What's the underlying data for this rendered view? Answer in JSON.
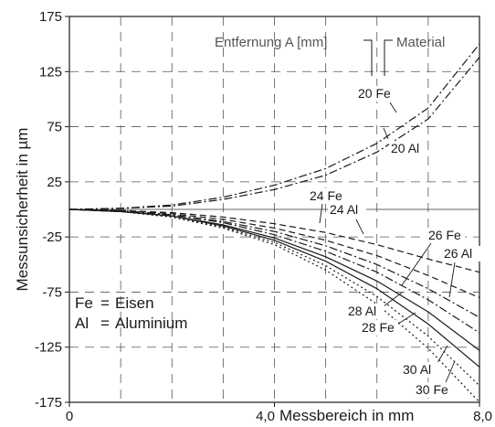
{
  "chart_data": {
    "type": "line",
    "xlabel": "Messbereich in mm",
    "ylabel": "Messunsicherheit in µm",
    "xlim": [
      0,
      8.0
    ],
    "ylim": [
      -175,
      175
    ],
    "x_ticks": [
      {
        "v": 0,
        "label": "0"
      },
      {
        "v": 4,
        "label": "4,0"
      },
      {
        "v": 8,
        "label": "8,0"
      }
    ],
    "y_ticks": [
      {
        "v": 175,
        "label": "175"
      },
      {
        "v": 125,
        "label": "125"
      },
      {
        "v": 75,
        "label": "75"
      },
      {
        "v": 25,
        "label": "25"
      },
      {
        "v": -25,
        "label": "-25"
      },
      {
        "v": -75,
        "label": "-75"
      },
      {
        "v": -125,
        "label": "-125"
      },
      {
        "v": -175,
        "label": "-175"
      }
    ],
    "grid": true,
    "header_labels": {
      "distance": "Entfernung A [mm]",
      "material": "Material"
    },
    "legend_lines": [
      {
        "abbr": "Fe",
        "name": "Eisen"
      },
      {
        "abbr": "Al",
        "name": "Aluminium"
      }
    ],
    "series": [
      {
        "name": "20 Fe",
        "style": "dashdot",
        "x": [
          0,
          1,
          2,
          3,
          4,
          5,
          6,
          7,
          8
        ],
        "values": [
          0,
          1,
          4,
          11,
          22,
          37,
          60,
          92,
          150
        ]
      },
      {
        "name": "20 Al",
        "style": "dashdot",
        "x": [
          0,
          1,
          2,
          3,
          4,
          5,
          6,
          7,
          8
        ],
        "values": [
          0,
          1,
          3,
          9,
          18,
          31,
          52,
          82,
          138
        ]
      },
      {
        "name": "24 Fe",
        "style": "dashed",
        "x": [
          0,
          1,
          2,
          3,
          4,
          5,
          6,
          7,
          8
        ],
        "values": [
          0,
          -1,
          -3,
          -7,
          -13,
          -21,
          -32,
          -45,
          -57
        ]
      },
      {
        "name": "24 Al",
        "style": "dashed",
        "x": [
          0,
          1,
          2,
          3,
          4,
          5,
          6,
          7,
          8
        ],
        "values": [
          0,
          -1,
          -4,
          -9,
          -17,
          -28,
          -42,
          -60,
          -80
        ]
      },
      {
        "name": "26 Fe",
        "style": "dashdot",
        "x": [
          0,
          1,
          2,
          3,
          4,
          5,
          6,
          7,
          8
        ],
        "values": [
          0,
          -1,
          -5,
          -11,
          -20,
          -33,
          -50,
          -72,
          -98
        ]
      },
      {
        "name": "26 Al",
        "style": "dashdot",
        "x": [
          0,
          1,
          2,
          3,
          4,
          5,
          6,
          7,
          8
        ],
        "values": [
          0,
          -1,
          -5,
          -12,
          -23,
          -38,
          -57,
          -82,
          -112
        ]
      },
      {
        "name": "28 Al",
        "style": "solid",
        "x": [
          0,
          1,
          2,
          3,
          4,
          5,
          6,
          7,
          8
        ],
        "values": [
          0,
          -2,
          -6,
          -14,
          -26,
          -43,
          -65,
          -93,
          -128
        ]
      },
      {
        "name": "28 Fe",
        "style": "solid",
        "x": [
          0,
          1,
          2,
          3,
          4,
          5,
          6,
          7,
          8
        ],
        "values": [
          0,
          -2,
          -6,
          -15,
          -28,
          -47,
          -72,
          -104,
          -143
        ]
      },
      {
        "name": "30 Al",
        "style": "dotted",
        "x": [
          0,
          1,
          2,
          3,
          4,
          5,
          6,
          7,
          8
        ],
        "values": [
          0,
          -2,
          -7,
          -16,
          -30,
          -51,
          -79,
          -115,
          -160
        ]
      },
      {
        "name": "30 Fe",
        "style": "dotted",
        "x": [
          0,
          1,
          2,
          3,
          4,
          5,
          6,
          7,
          8
        ],
        "values": [
          0,
          -2,
          -7,
          -17,
          -32,
          -55,
          -86,
          -126,
          -175
        ]
      }
    ]
  }
}
